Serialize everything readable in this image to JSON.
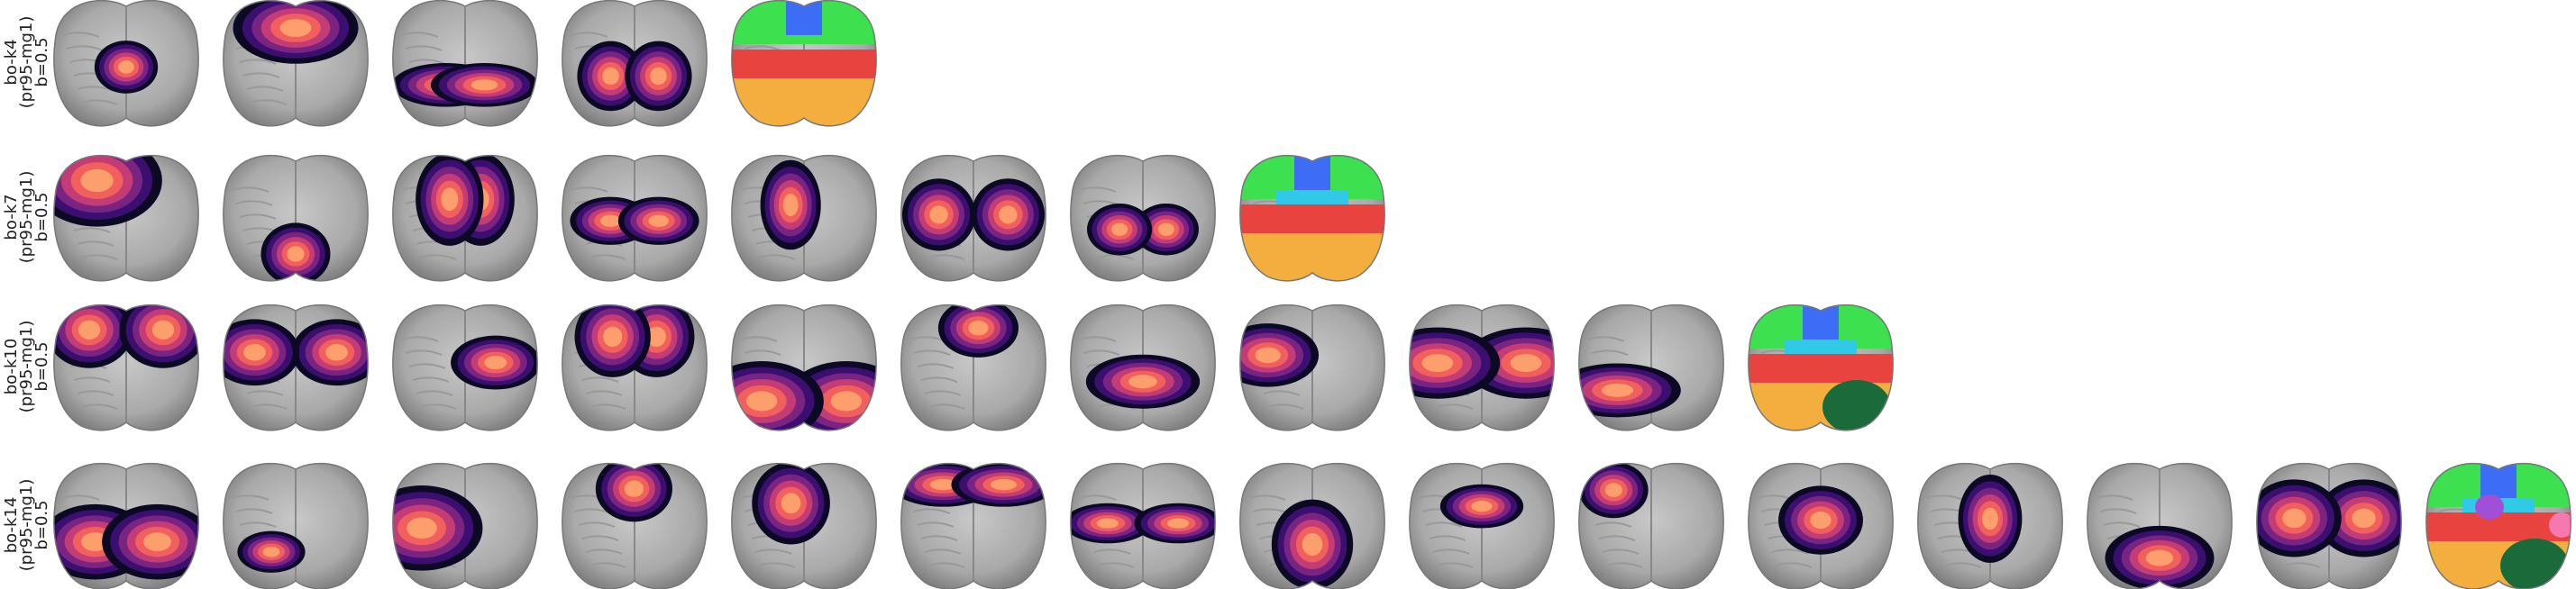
{
  "rows": [
    {
      "label": [
        "bo-k4",
        "(pr95-mg1)",
        "b=0.5"
      ]
    },
    {
      "label": [
        "bo-k7",
        "(pr95-mg1)",
        "b=0.5"
      ]
    },
    {
      "label": [
        "bo-k10",
        "(pr95-mg1)",
        "b=0.5"
      ]
    },
    {
      "label": [
        "bo-k14",
        "(pr95-mg1)",
        "b=0.5"
      ]
    }
  ]
}
